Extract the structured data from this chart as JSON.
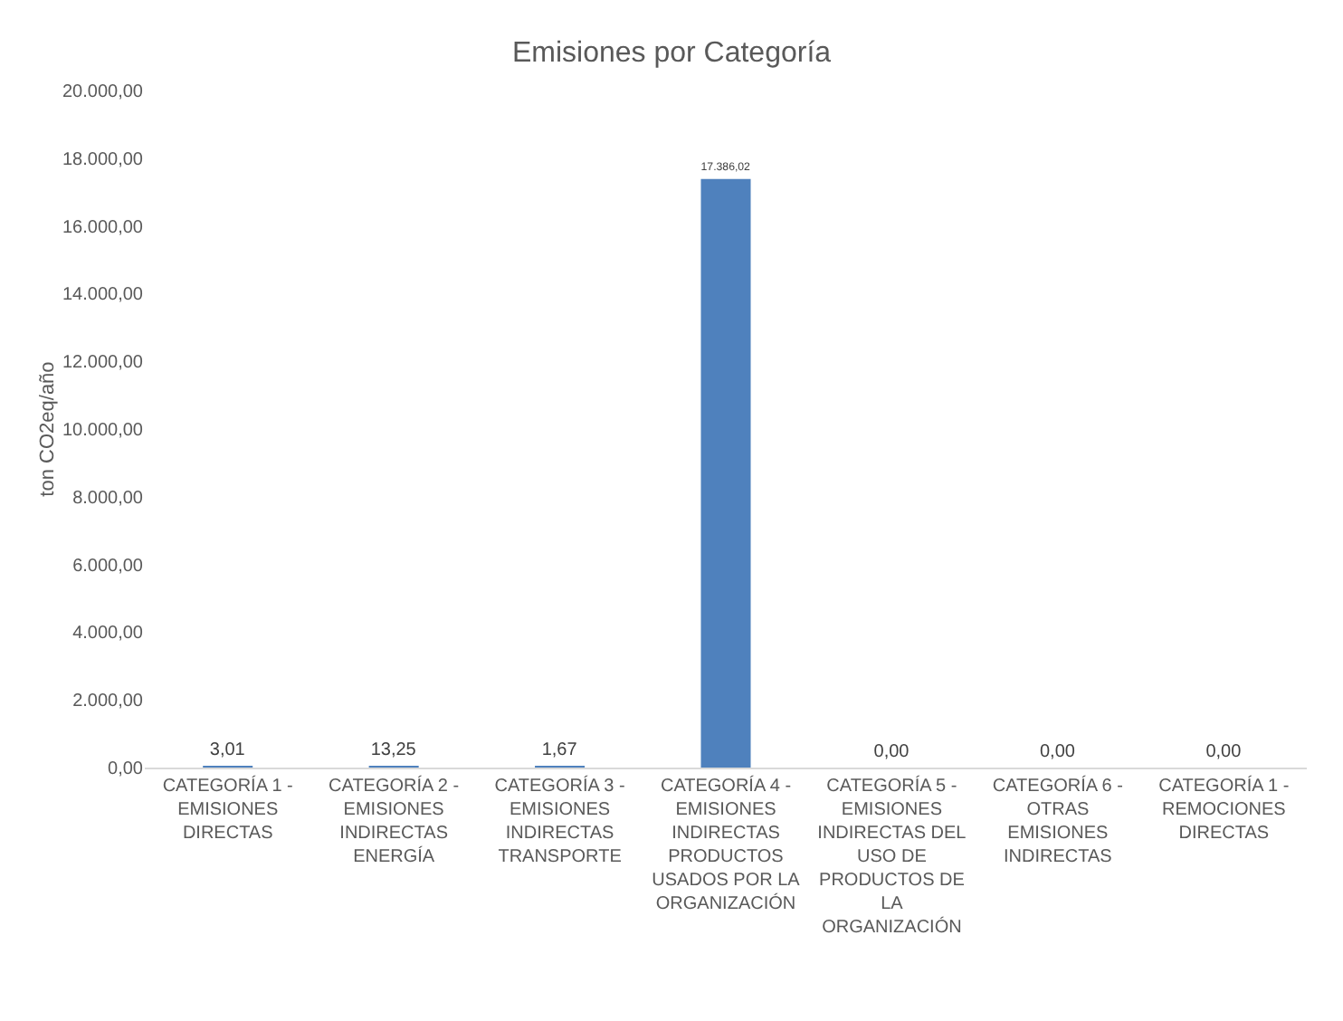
{
  "chart_data": {
    "type": "bar",
    "title": "Emisiones por Categoría",
    "ylabel": "ton CO2eq/año",
    "categories": [
      "CATEGORÍA 1 - EMISIONES DIRECTAS",
      "CATEGORÍA 2 - EMISIONES INDIRECTAS ENERGÍA",
      "CATEGORÍA 3 - EMISIONES INDIRECTAS TRANSPORTE",
      "CATEGORÍA 4 - EMISIONES INDIRECTAS PRODUCTOS USADOS POR LA ORGANIZACIÓN",
      "CATEGORÍA 5 - EMISIONES INDIRECTAS DEL USO DE PRODUCTOS DE LA ORGANIZACIÓN",
      "CATEGORÍA 6 - OTRAS EMISIONES INDIRECTAS",
      "CATEGORÍA 1 - REMOCIONES DIRECTAS"
    ],
    "values": [
      3.01,
      13.25,
      1.67,
      17386.02,
      0,
      0,
      0
    ],
    "value_labels": [
      "3,01",
      "13,25",
      "1,67",
      "17.386,02",
      "0,00",
      "0,00",
      "0,00"
    ],
    "color": "#4f81bd",
    "ylim": [
      0,
      20000
    ],
    "yticks": [
      {
        "value": 0,
        "label": "0,00"
      },
      {
        "value": 2000,
        "label": "2.000,00"
      },
      {
        "value": 4000,
        "label": "4.000,00"
      },
      {
        "value": 6000,
        "label": "6.000,00"
      },
      {
        "value": 8000,
        "label": "8.000,00"
      },
      {
        "value": 10000,
        "label": "10.000,00"
      },
      {
        "value": 12000,
        "label": "12.000,00"
      },
      {
        "value": 14000,
        "label": "14.000,00"
      },
      {
        "value": 16000,
        "label": "16.000,00"
      },
      {
        "value": 18000,
        "label": "18.000,00"
      },
      {
        "value": 20000,
        "label": "20.000,00"
      }
    ]
  }
}
